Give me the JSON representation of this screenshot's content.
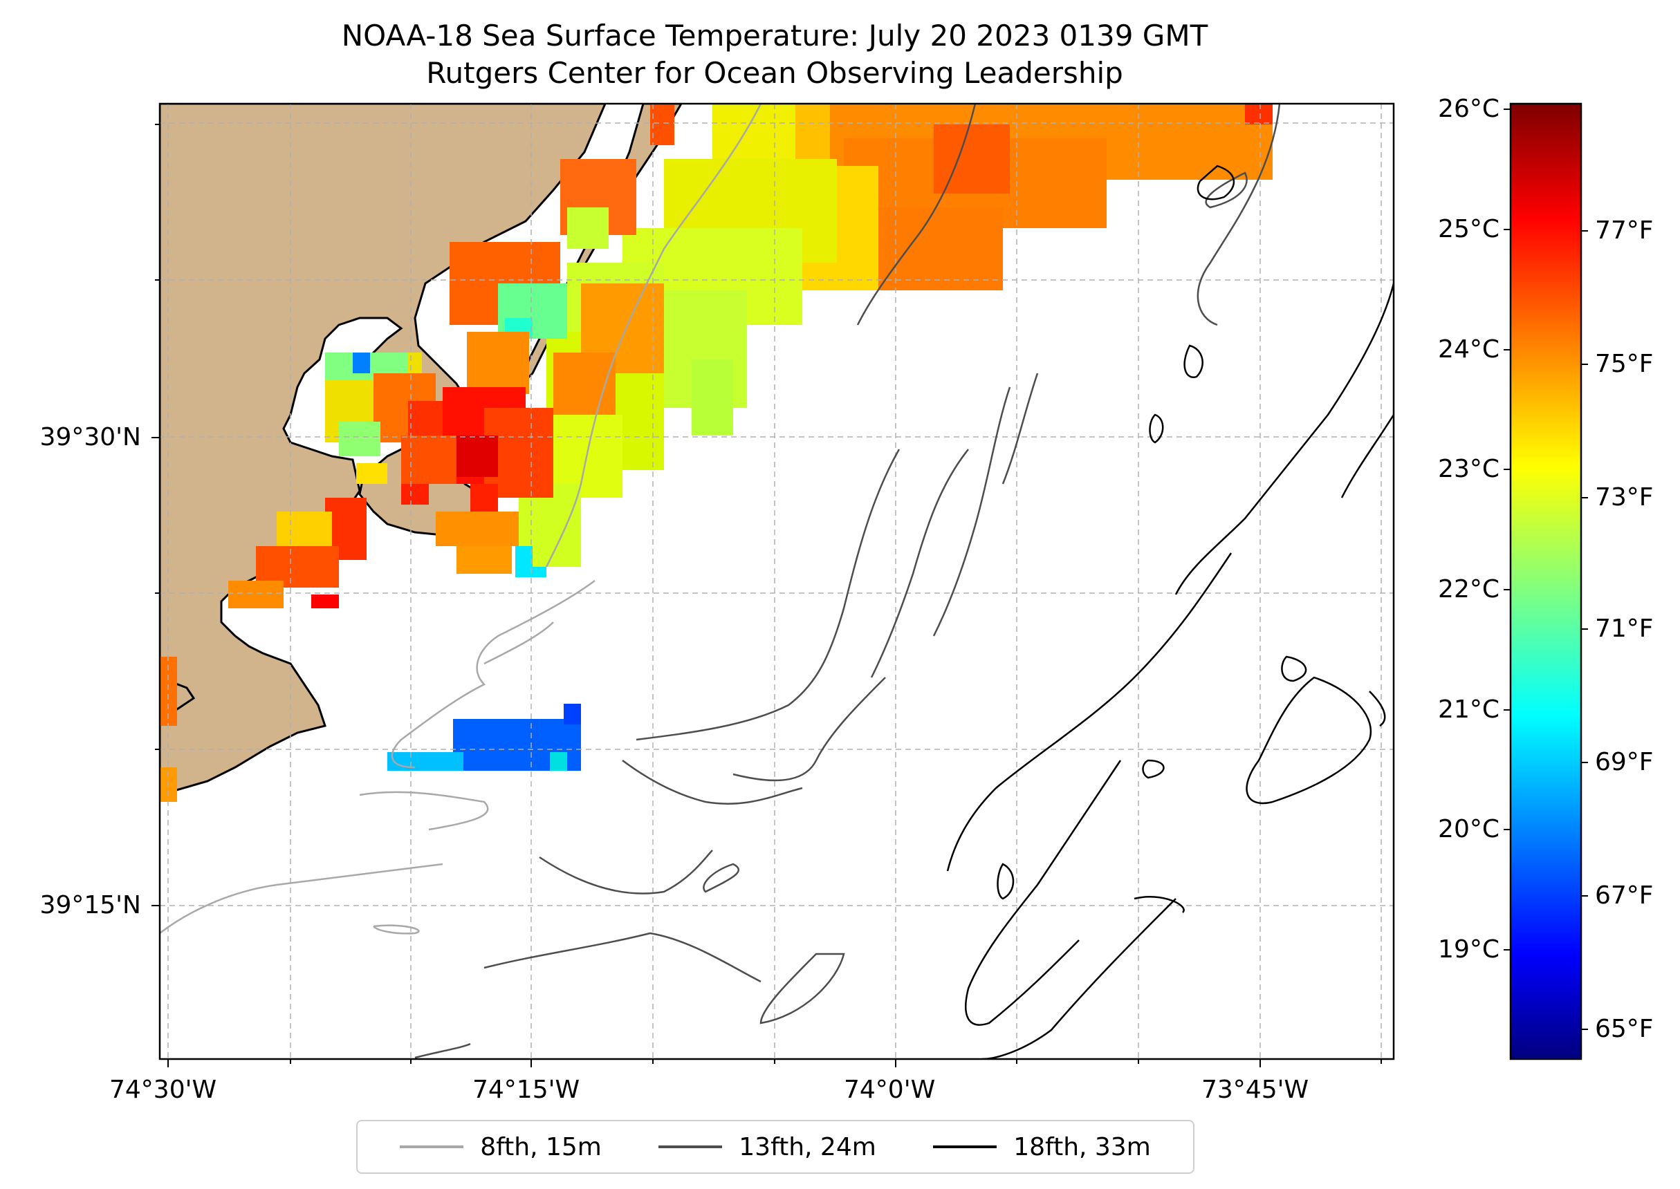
{
  "title": {
    "line1": "NOAA-18 Sea Surface Temperature: July 20 2023 0139 GMT",
    "line2": "Rutgers Center for Ocean Observing Leadership"
  },
  "axes": {
    "lat_ticks": [
      "39°30'N",
      "39°15'N"
    ],
    "lon_ticks": [
      "74°30'W",
      "74°15'W",
      "74°0'W",
      "73°45'W"
    ]
  },
  "colorbar": {
    "celsius_ticks": [
      "26°C",
      "25°C",
      "24°C",
      "23°C",
      "22°C",
      "21°C",
      "20°C",
      "19°C"
    ],
    "fahrenheit_ticks": [
      "77°F",
      "75°F",
      "73°F",
      "71°F",
      "69°F",
      "67°F",
      "65°F"
    ],
    "range_celsius": [
      18.1,
      26.1
    ],
    "colormap": "jet"
  },
  "legend": {
    "items": [
      {
        "label": "8fth, 15m",
        "color": "#a8a8a8"
      },
      {
        "label": "13fth, 24m",
        "color": "#4d4d4d"
      },
      {
        "label": "18fth, 33m",
        "color": "#000000"
      }
    ]
  },
  "colors": {
    "land": "#d2b48c",
    "grid": "#b0b0b0"
  }
}
